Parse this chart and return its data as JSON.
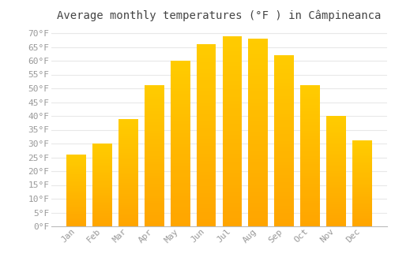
{
  "title": "Average monthly temperatures (°F ) in Câmpineanca",
  "months": [
    "Jan",
    "Feb",
    "Mar",
    "Apr",
    "May",
    "Jun",
    "Jul",
    "Aug",
    "Sep",
    "Oct",
    "Nov",
    "Dec"
  ],
  "values": [
    26,
    30,
    39,
    51,
    60,
    66,
    69,
    68,
    62,
    51,
    40,
    31
  ],
  "bar_color_top": "#FFBA00",
  "bar_color_bottom": "#FFA500",
  "bar_edge_color": "#E8A000",
  "background_color": "#FFFFFF",
  "grid_color": "#E8E8E8",
  "text_color": "#999999",
  "title_color": "#444444",
  "ylim": [
    0,
    72
  ],
  "yticks": [
    0,
    5,
    10,
    15,
    20,
    25,
    30,
    35,
    40,
    45,
    50,
    55,
    60,
    65,
    70
  ],
  "title_fontsize": 10,
  "tick_fontsize": 8
}
